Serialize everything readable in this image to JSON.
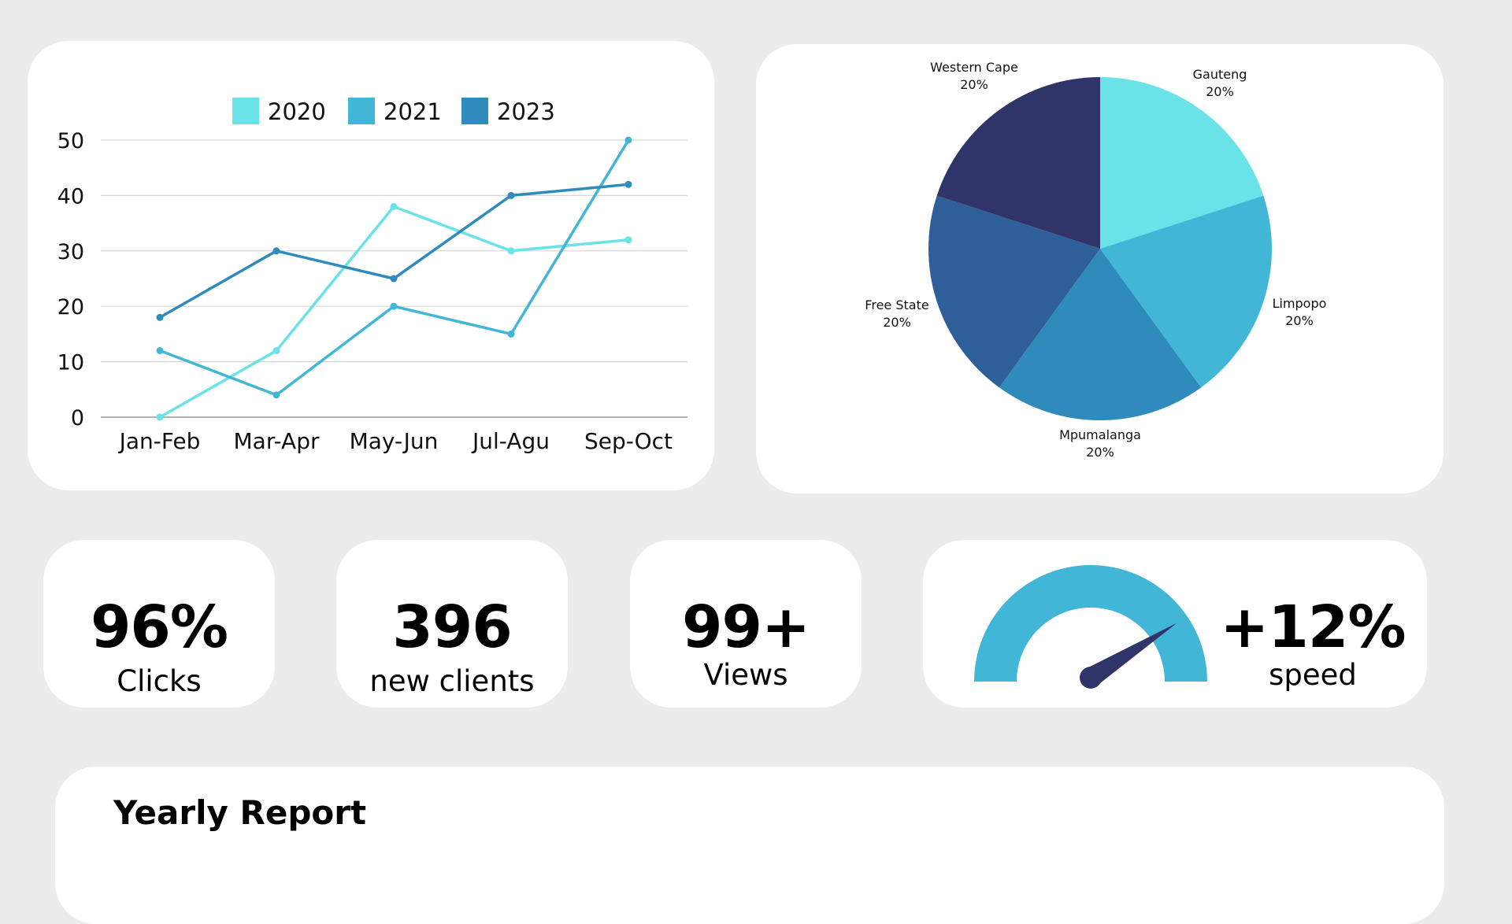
{
  "chart_data": [
    {
      "type": "line",
      "categories": [
        "Jan-Feb",
        "Mar-Apr",
        "May-Jun",
        "Jul-Agu",
        "Sep-Oct"
      ],
      "series": [
        {
          "name": "2020",
          "color": "#6ae3e8",
          "values": [
            0,
            12,
            38,
            30,
            32
          ]
        },
        {
          "name": "2021",
          "color": "#42b6d6",
          "values": [
            12,
            4,
            20,
            15,
            50
          ]
        },
        {
          "name": "2023",
          "color": "#2e8bbb",
          "values": [
            18,
            30,
            25,
            40,
            42
          ]
        }
      ],
      "yticks": [
        "0",
        "10",
        "20",
        "30",
        "40",
        "50"
      ],
      "ylim": [
        0,
        50
      ],
      "grid": true,
      "legend": "top-center"
    },
    {
      "type": "pie",
      "slices": [
        {
          "label": "Gauteng",
          "value": 20,
          "display": "20%",
          "color": "#6ae3e8"
        },
        {
          "label": "Limpopo",
          "value": 20,
          "display": "20%",
          "color": "#42b6d6"
        },
        {
          "label": "Mpumalanga",
          "value": 20,
          "display": "20%",
          "color": "#2e8bbb"
        },
        {
          "label": "Free State",
          "value": 20,
          "display": "20%",
          "color": "#2e5f99"
        },
        {
          "label": "Western Cape",
          "value": 20,
          "display": "20%",
          "color": "#303468"
        }
      ]
    }
  ],
  "stats": {
    "clicks": {
      "value": "96%",
      "label": "Clicks"
    },
    "clients": {
      "value": "396",
      "label": "new clients"
    },
    "views": {
      "value": "99+",
      "label": "Views"
    }
  },
  "speed": {
    "value": "+12%",
    "label": "speed",
    "gauge_level": 0.82,
    "arc_color": "#42b6d6",
    "needle_color": "#303468"
  },
  "report": {
    "title": "Yearly Report"
  }
}
